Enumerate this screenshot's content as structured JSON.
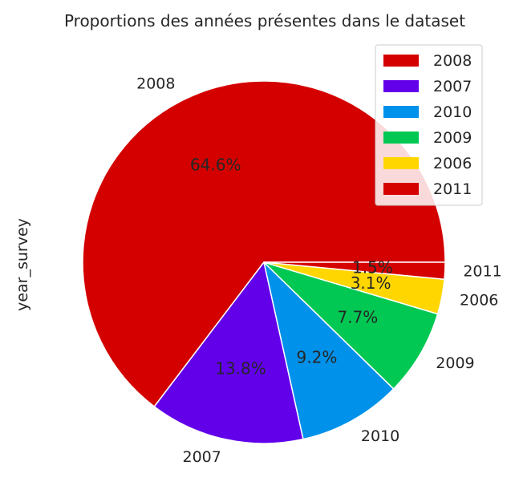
{
  "chart_data": {
    "type": "pie",
    "title": "Proportions des années présentes dans le dataset",
    "ylabel": "year_survey",
    "categories": [
      "2008",
      "2007",
      "2010",
      "2009",
      "2006",
      "2011"
    ],
    "values": [
      64.6,
      13.8,
      9.2,
      7.7,
      3.1,
      1.5
    ],
    "pct_labels": [
      "64.6%",
      "13.8%",
      "9.2%",
      "7.7%",
      "3.1%",
      "1.5%"
    ],
    "colors": [
      "#d40000",
      "#6200ea",
      "#0091ea",
      "#00c853",
      "#ffd600",
      "#d50000"
    ],
    "legend": {
      "placement": "top-right",
      "entries": [
        "2008",
        "2007",
        "2010",
        "2009",
        "2006",
        "2011"
      ]
    },
    "start_angle_deg": 0,
    "direction": "counterclockwise"
  }
}
